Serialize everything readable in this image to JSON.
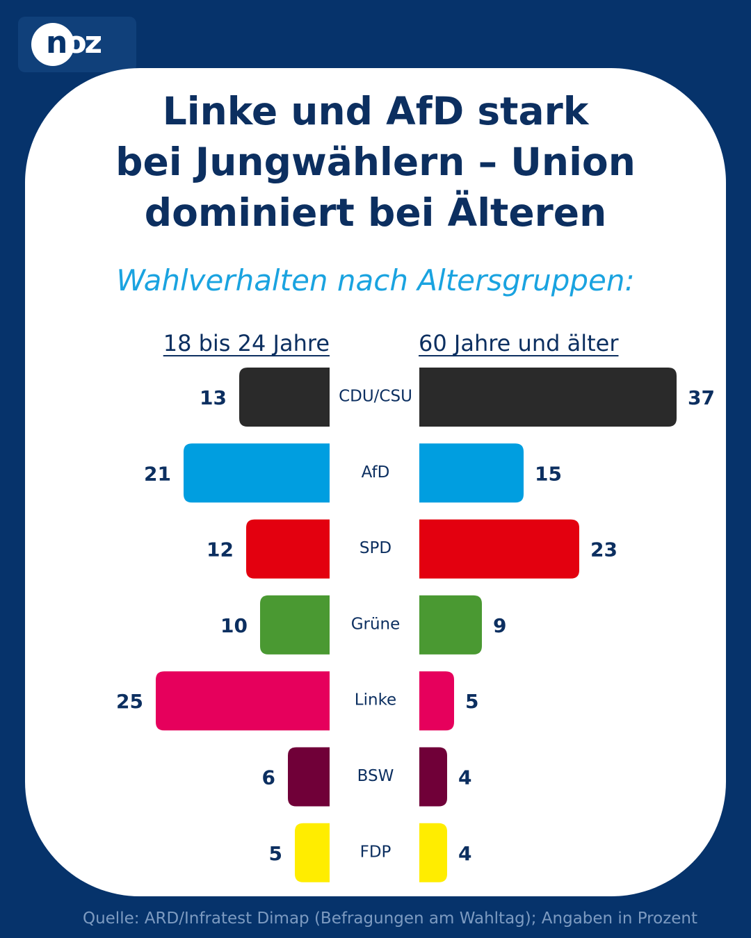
{
  "brand": {
    "logo_text": "noz",
    "background_color": "#06336b",
    "card_color": "#ffffff"
  },
  "title": {
    "lines": [
      "Linke und AfD stark",
      "bei Jungwählern – Union",
      "dominiert bei Älteren"
    ],
    "color": "#0c2f60"
  },
  "subtitle": "Wahlverhalten nach Altersgruppen:",
  "source": "Quelle: ARD/Infratest Dimap (Befragungen am Wahltag); Angaben in Prozent",
  "chart_data": {
    "type": "bar",
    "orientation": "horizontal-butterfly",
    "categories": [
      "CDU/CSU",
      "AfD",
      "SPD",
      "Grüne",
      "Linke",
      "BSW",
      "FDP"
    ],
    "colors": [
      "#2a2a2a",
      "#009ee0",
      "#e3000f",
      "#4a9932",
      "#e6005c",
      "#700038",
      "#ffed00"
    ],
    "series": [
      {
        "name": "18 bis 24 Jahre",
        "side": "left",
        "values": [
          13,
          21,
          12,
          10,
          25,
          6,
          5
        ]
      },
      {
        "name": "60 Jahre und älter",
        "side": "right",
        "values": [
          37,
          15,
          23,
          9,
          5,
          4,
          4
        ]
      }
    ],
    "unit": "Prozent",
    "xlim": [
      0,
      37
    ]
  }
}
